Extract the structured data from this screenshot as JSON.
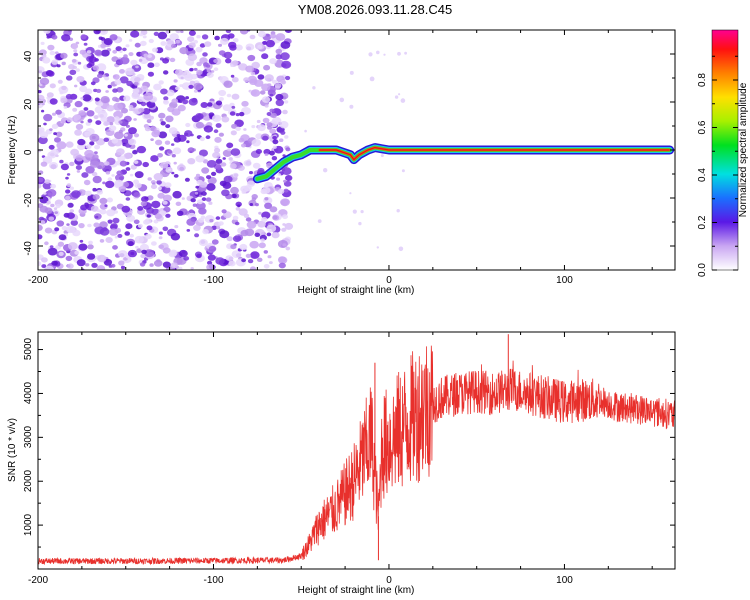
{
  "title": "YM08.2026.093.11.28.C45",
  "chart_data": [
    {
      "type": "heatmap",
      "title": "YM08.2026.093.11.28.C45",
      "xlabel": "Height of straight line (km)",
      "ylabel": "Frequency (Hz)",
      "xlim": [
        -200,
        163
      ],
      "ylim": [
        -50,
        50
      ],
      "xticks": [
        "-200",
        "-100",
        "0",
        "100"
      ],
      "yticks": [
        "40",
        "20",
        "0",
        "-20",
        "-40"
      ],
      "noise_region_x": [
        -200,
        -57
      ],
      "trace": {
        "x": [
          -75,
          -70,
          -65,
          -60,
          -55,
          -50,
          -45,
          -40,
          -30,
          -22,
          -20,
          -17,
          -12,
          -8,
          0,
          20,
          40,
          60,
          80,
          100,
          120,
          140,
          160
        ],
        "y": [
          -12,
          -11,
          -8,
          -5,
          -3,
          -2,
          0,
          0,
          0,
          -2,
          -4,
          -2,
          0,
          1,
          0,
          0,
          0,
          0,
          0,
          0,
          0,
          0,
          0
        ]
      },
      "colorbar": {
        "label": "Normalized spectral amplitude",
        "range": [
          0,
          1
        ],
        "ticks": [
          "0.0",
          "0.2",
          "0.4",
          "0.6",
          "0.8"
        ]
      }
    },
    {
      "type": "line",
      "xlabel": "Height of straight line (km)",
      "ylabel": "SNR (10 * v/v)",
      "xlim": [
        -200,
        163
      ],
      "ylim": [
        0,
        5400
      ],
      "xticks": [
        "-200",
        "-100",
        "0",
        "100"
      ],
      "yticks": [
        "5000",
        "4000",
        "3000",
        "2000",
        "1000"
      ],
      "color": "#e8302c",
      "series": [
        {
          "name": "SNR",
          "x": [
            -200,
            -150,
            -100,
            -60,
            -50,
            -45,
            -40,
            -30,
            -20,
            -15,
            -10,
            -6,
            -4,
            0,
            10,
            20,
            30,
            40,
            50,
            60,
            70,
            80,
            90,
            100,
            110,
            120,
            130,
            140,
            150,
            163
          ],
          "y": [
            180,
            180,
            190,
            200,
            300,
            600,
            1000,
            1400,
            2000,
            2500,
            3000,
            1200,
            2800,
            2900,
            3300,
            3700,
            3900,
            4000,
            4050,
            4000,
            4100,
            4000,
            3900,
            3800,
            3850,
            3850,
            3700,
            3650,
            3600,
            3500
          ]
        }
      ],
      "spikes": [
        {
          "x": -8,
          "y": 4700
        },
        {
          "x": -6,
          "y": 200
        },
        {
          "x": 68,
          "y": 5350
        }
      ]
    }
  ]
}
